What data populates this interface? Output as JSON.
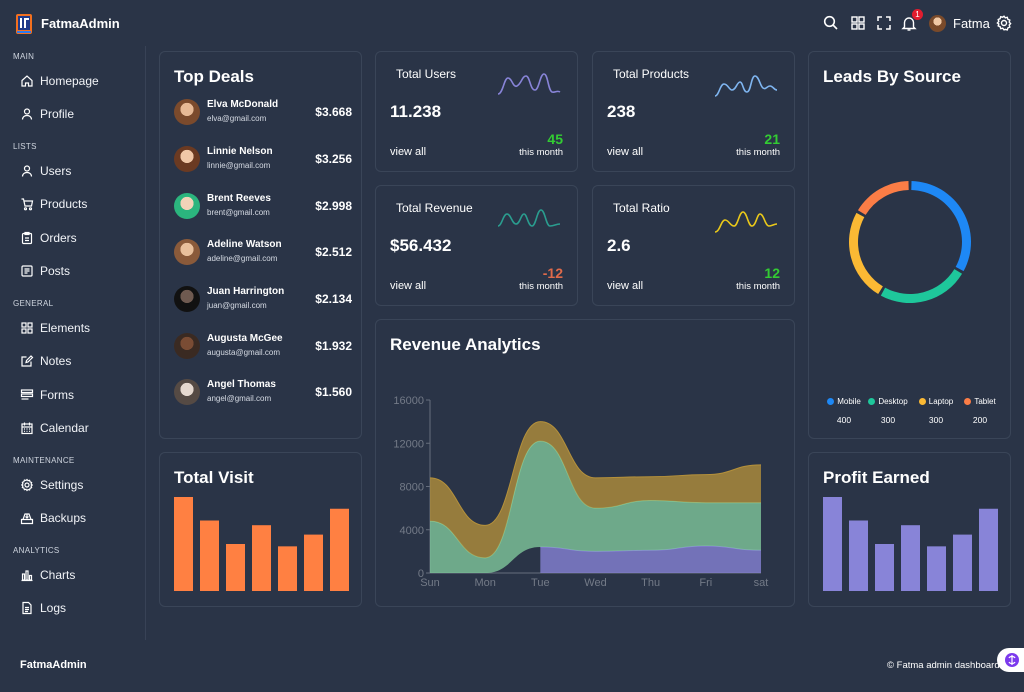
{
  "app": {
    "title": "FatmaAdmin"
  },
  "header": {
    "notifications_count": "1",
    "user_name": "Fatma",
    "icons": [
      "search-icon",
      "apps-icon",
      "fullscreen-icon",
      "bell-icon",
      "settings-icon"
    ]
  },
  "sidebar": {
    "sections": [
      {
        "title": "MAIN",
        "items": [
          {
            "label": "Homepage",
            "icon": "home-icon"
          },
          {
            "label": "Profile",
            "icon": "user-icon"
          }
        ]
      },
      {
        "title": "LISTS",
        "items": [
          {
            "label": "Users",
            "icon": "users-icon"
          },
          {
            "label": "Products",
            "icon": "cart-icon"
          },
          {
            "label": "Orders",
            "icon": "clipboard-icon"
          },
          {
            "label": "Posts",
            "icon": "posts-icon"
          }
        ]
      },
      {
        "title": "GENERAL",
        "items": [
          {
            "label": "Elements",
            "icon": "grid-icon"
          },
          {
            "label": "Notes",
            "icon": "note-icon"
          },
          {
            "label": "Forms",
            "icon": "form-icon"
          },
          {
            "label": "Calendar",
            "icon": "calendar-icon"
          }
        ]
      },
      {
        "title": "MAINTENANCE",
        "items": [
          {
            "label": "Settings",
            "icon": "settings-icon"
          },
          {
            "label": "Backups",
            "icon": "backup-icon"
          }
        ]
      },
      {
        "title": "ANALYTICS",
        "items": [
          {
            "label": "Charts",
            "icon": "chart-icon"
          },
          {
            "label": "Logs",
            "icon": "logs-icon"
          }
        ]
      }
    ]
  },
  "top_deals": {
    "title": "Top Deals",
    "deals": [
      {
        "name": "Elva McDonald",
        "email": "elva@gmail.com",
        "amount": "$3.668"
      },
      {
        "name": "Linnie Nelson",
        "email": "linnie@gmail.com",
        "amount": "$3.256"
      },
      {
        "name": "Brent Reeves",
        "email": "brent@gmail.com",
        "amount": "$2.998"
      },
      {
        "name": "Adeline Watson",
        "email": "adeline@gmail.com",
        "amount": "$2.512"
      },
      {
        "name": "Juan Harrington",
        "email": "juan@gmail.com",
        "amount": "$2.134"
      },
      {
        "name": "Augusta McGee",
        "email": "augusta@gmail.com",
        "amount": "$1.932"
      },
      {
        "name": "Angel Thomas",
        "email": "angel@gmail.com",
        "amount": "$1.560"
      }
    ]
  },
  "stats": [
    {
      "title": "Total Users",
      "value": "11.238",
      "link": "view all",
      "change": "45",
      "period": "this month",
      "change_color": "#33cc33",
      "spark_color": "#8884d8"
    },
    {
      "title": "Total Products",
      "value": "238",
      "link": "view all",
      "change": "21",
      "period": "this month",
      "change_color": "#33cc33",
      "spark_color": "#7fb5f0"
    },
    {
      "title": "Total Revenue",
      "value": "$56.432",
      "link": "view all",
      "change": "-12",
      "period": "this month",
      "change_color": "#e06a4a",
      "spark_color": "#2a9d8f"
    },
    {
      "title": "Total Ratio",
      "value": "2.6",
      "link": "view all",
      "change": "12",
      "period": "this month",
      "change_color": "#33cc33",
      "spark_color": "#e9c81a"
    }
  ],
  "leads": {
    "title": "Leads By Source",
    "items": [
      {
        "name": "Mobile",
        "value": 400,
        "color": "#1e88f5"
      },
      {
        "name": "Desktop",
        "value": 300,
        "color": "#1ec79b"
      },
      {
        "name": "Laptop",
        "value": 300,
        "color": "#fbb934"
      },
      {
        "name": "Tablet",
        "value": 200,
        "color": "#fb7d46"
      }
    ]
  },
  "total_visit": {
    "title": "Total Visit",
    "color": "#ff8042"
  },
  "profit_earned": {
    "title": "Profit Earned",
    "color": "#8884d8"
  },
  "chart_data": [
    {
      "type": "area",
      "title": "Revenue Analytics",
      "categories": [
        "Sun",
        "Mon",
        "Tue",
        "Wed",
        "Thu",
        "Fri",
        "sat"
      ],
      "ylim": [
        0,
        16000
      ],
      "yticks": [
        0,
        4000,
        8000,
        12000,
        16000
      ],
      "grid": false,
      "stacked": true,
      "series": [
        {
          "color": "#8884d8",
          "values": [
            null,
            null,
            2400,
            2000,
            2100,
            2500,
            2100
          ]
        },
        {
          "color": "#82ca9d",
          "values": [
            4800,
            1400,
            9800,
            4000,
            4600,
            4000,
            4400
          ]
        },
        {
          "color": "#b5913b",
          "values": [
            4000,
            3000,
            1800,
            2800,
            2200,
            2600,
            3500
          ]
        }
      ]
    },
    {
      "type": "bar",
      "title": "Total Visit",
      "values": [
        4000,
        3000,
        2000,
        2800,
        1900,
        2400,
        3500
      ]
    },
    {
      "type": "bar",
      "title": "Profit Earned",
      "values": [
        4000,
        3000,
        2000,
        2800,
        1900,
        2400,
        3500
      ]
    }
  ],
  "footer": {
    "brand": "FatmaAdmin",
    "copyright": "© Fatma admin dashboard"
  }
}
